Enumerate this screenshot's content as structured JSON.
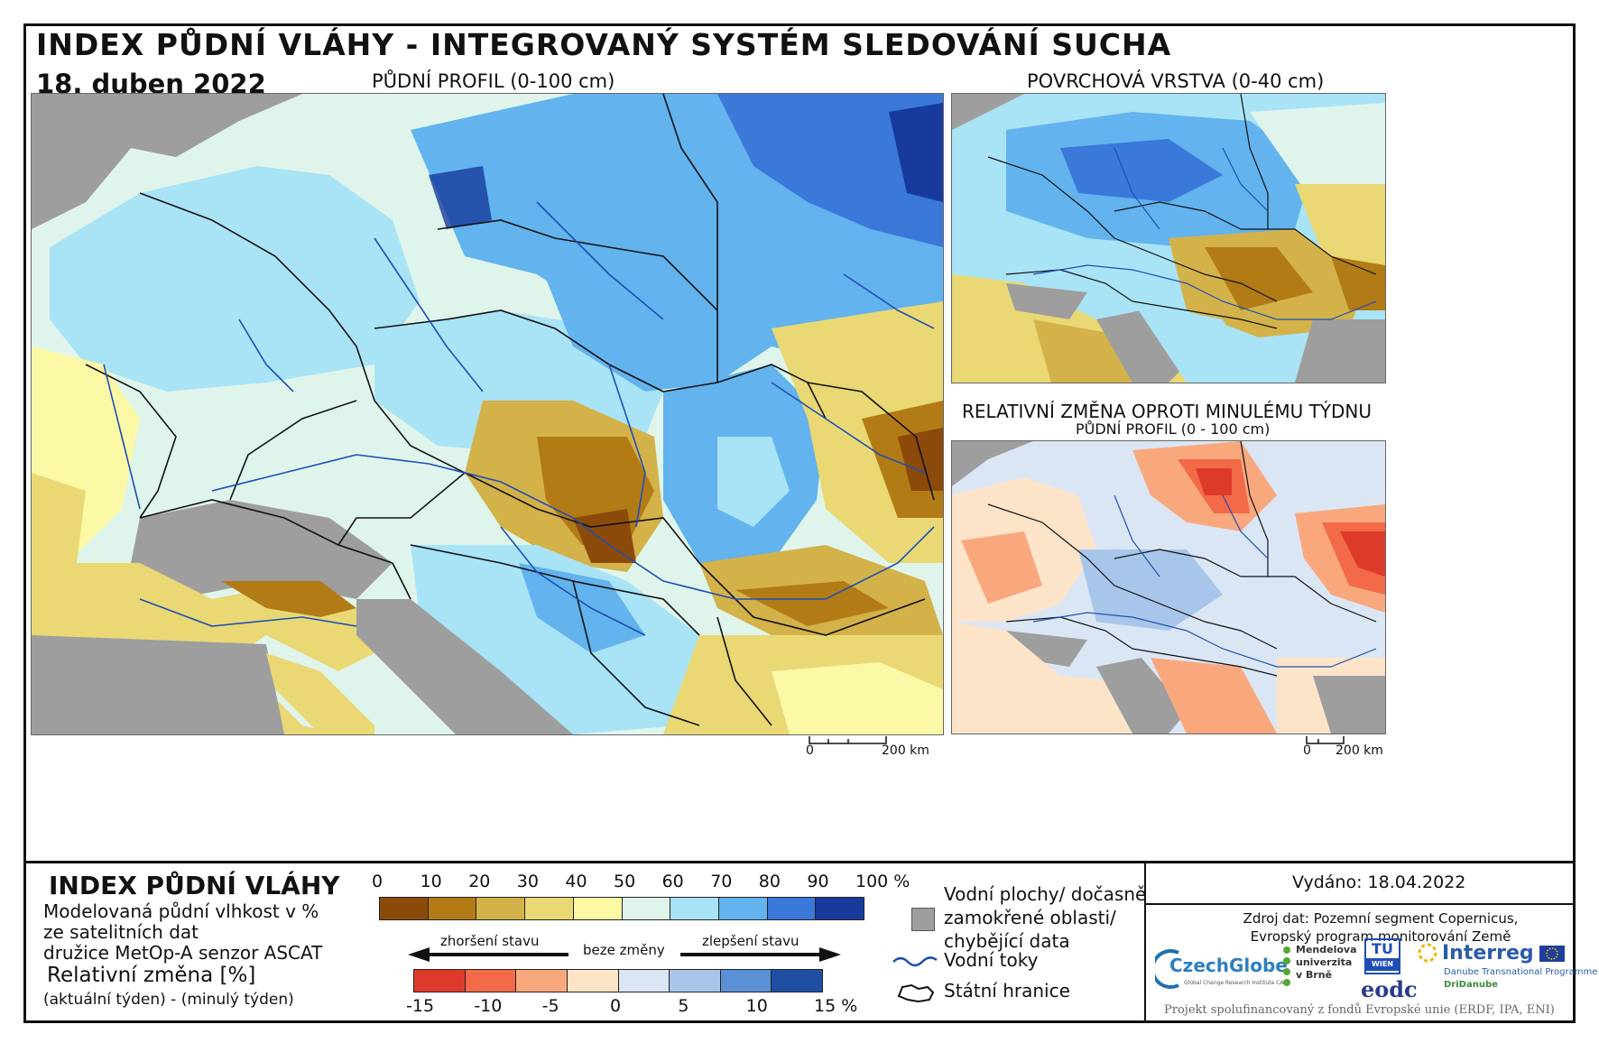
{
  "header": {
    "title": "INDEX PŮDNÍ VLÁHY - INTEGROVANÝ SYSTÉM SLEDOVÁNÍ SUCHA",
    "date": "18. duben 2022"
  },
  "maps": {
    "main_caption": "PŮDNÍ PROFIL (0-100 cm)",
    "surface_caption": "POVRCHOVÁ VRSTVA (0-40 cm)",
    "change_caption": "RELATIVNÍ ZMĚNA OPROTI MINULÉMU TÝDNU",
    "change_subcaption": "PŮDNÍ PROFIL (0 - 100 cm)",
    "scale_main": {
      "zero": "0",
      "end": "200 km"
    },
    "scale_small": {
      "zero": "0",
      "end": "200 km"
    }
  },
  "legend": {
    "title": "INDEX PŮDNÍ VLÁHY",
    "desc_lines": [
      "Modelovaná půdní vlhkost v %",
      "ze satelitních dat",
      "družice MetOp-A senzor ASCAT"
    ],
    "change_title": "Relativní změna [%]",
    "change_desc": "(aktuální týden) - (minulý týden)",
    "index_ticks": [
      "0",
      "10",
      "20",
      "30",
      "40",
      "50",
      "60",
      "70",
      "80",
      "90",
      "100 %"
    ],
    "index_colors": [
      "#8c4a0a",
      "#b37b16",
      "#d4b24a",
      "#e9d874",
      "#fbf8a6",
      "#dff5ec",
      "#a9e3f6",
      "#62b3ee",
      "#3a78d9",
      "#173a9c"
    ],
    "change_ticks": [
      "-15",
      "-10",
      "-5",
      "0",
      "5",
      "10",
      "15 %"
    ],
    "change_colors": [
      "#de3a2c",
      "#f26a47",
      "#f9a87e",
      "#fde4c8",
      "#dbe6f5",
      "#a8c6ea",
      "#5b8fd6",
      "#1e4fa3"
    ],
    "arrow_worse": "zhoršení stavu",
    "arrow_none": "beze změny",
    "arrow_better": "zlepšení stavu",
    "items": {
      "water_bodies": [
        "Vodní plochy/ dočasně",
        "zamokřené oblasti/",
        "chybějící data"
      ],
      "rivers": "Vodní toky",
      "borders": "Státní hranice"
    },
    "colors": {
      "missing": "#9e9e9e",
      "river": "#1f4fb5",
      "border": "#111111"
    }
  },
  "footer": {
    "issued": "Vydáno: 18.04.2022",
    "source_lines": [
      "Zdroj dat: Pozemní segment Copernicus,",
      "Evropský program monitorování Země"
    ],
    "logos": {
      "czechglobe": "CzechGlobe",
      "czechglobe_sub": "Global Change Research Institute CAS",
      "mendel": [
        "Mendelova",
        "univerzita",
        "v Brně"
      ],
      "tuwien_top": "TU",
      "tuwien_bottom": "WIEN",
      "eodc": "eodc",
      "interreg": "Interreg",
      "interreg_sub": "Danube Transnational Programme",
      "dridanube": "DriDanube"
    },
    "project": "Projekt spolufinancovaný z fondů Evropské unie (ERDF, IPA, ENI)"
  }
}
